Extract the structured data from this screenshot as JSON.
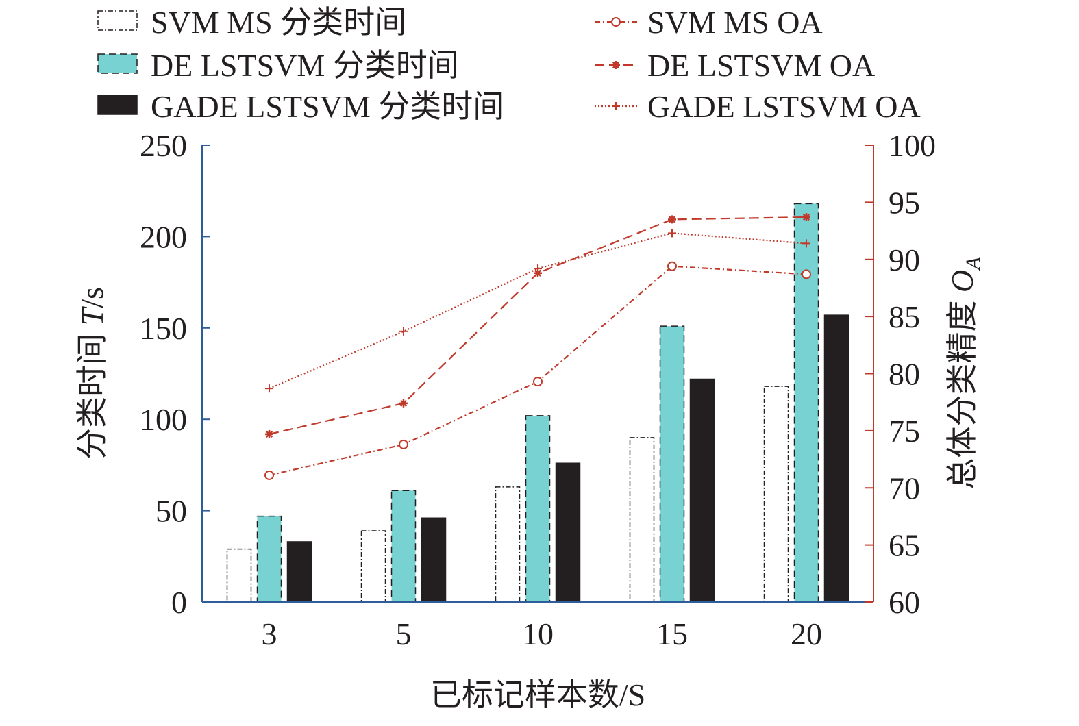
{
  "chart_data": {
    "type": "bar",
    "categories": [
      "3",
      "5",
      "10",
      "15",
      "20"
    ],
    "xlabel": "已标记样本数/S",
    "ylabel_left": "分类时间 T/s",
    "ylabel_left_text": "分类时间 ",
    "ylabel_left_var": "T",
    "ylabel_left_unit": "/s",
    "ylabel_right": "总体分类精度 OA",
    "ylabel_right_text": "总体分类精度 ",
    "ylabel_right_var": "O",
    "ylabel_right_sub": "A",
    "ylim_left": [
      0,
      250
    ],
    "yticks_left": [
      "0",
      "50",
      "100",
      "150",
      "200",
      "250"
    ],
    "ylim_right": [
      60,
      100
    ],
    "yticks_right": [
      "60",
      "65",
      "70",
      "75",
      "80",
      "85",
      "90",
      "95",
      "100"
    ],
    "legend_placement": "top",
    "grid": false,
    "bar_series": [
      {
        "name": "SVM MS 分类时间",
        "values": [
          29,
          39,
          63,
          90,
          118
        ],
        "fill": "#ffffff",
        "stroke": "#231f20",
        "dash": "7,3,2,3"
      },
      {
        "name": "DE LSTSVM 分类时间",
        "values": [
          47,
          61,
          102,
          151,
          218
        ],
        "fill": "#78d2d2",
        "stroke": "#231f20",
        "dash": "10,6"
      },
      {
        "name": "GADE LSTSVM 分类时间",
        "values": [
          33,
          46,
          76,
          122,
          157
        ],
        "fill": "#231f20",
        "stroke": "#231f20",
        "dash": ""
      }
    ],
    "line_series": [
      {
        "name": "SVM MS OA",
        "values": [
          71.1,
          73.8,
          79.3,
          89.4,
          88.7
        ],
        "color": "#c0392b",
        "marker": "circle",
        "dash": "8,4,2,4"
      },
      {
        "name": "DE LSTSVM OA",
        "values": [
          74.7,
          77.4,
          88.8,
          93.5,
          93.7
        ],
        "color": "#c0392b",
        "marker": "star",
        "dash": "14,7"
      },
      {
        "name": "GADE LSTSVM OA",
        "values": [
          78.7,
          83.7,
          89.2,
          92.3,
          91.4
        ],
        "color": "#c0392b",
        "marker": "plus",
        "dash": "2,3"
      }
    ],
    "colors": {
      "left_axis": "#2e5d9a",
      "right_axis": "#c0392b",
      "text": "#231f20"
    }
  }
}
